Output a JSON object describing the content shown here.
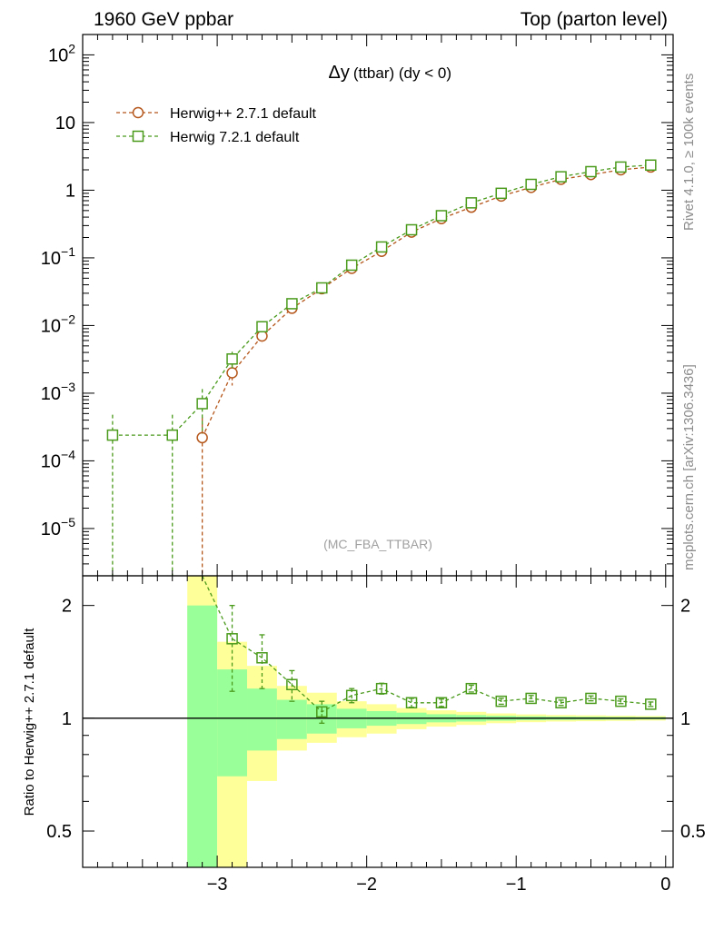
{
  "header": {
    "left": "1960 GeV ppbar",
    "right": "Top (parton level)"
  },
  "side_labels": {
    "rivet": "Rivet 4.1.0, ≥ 100k events",
    "mcplots": "mcplots.cern.ch [arXiv:1306.3436]"
  },
  "plot": {
    "title_main": "Δy",
    "title_sub": "(ttbar) (dy < 0)",
    "analysis_id": "(MC_FBA_TTBAR)"
  },
  "ratio_panel": {
    "ylabel": "Ratio to Herwig++ 2.7.1 default",
    "reference_line": 1
  },
  "colors": {
    "herwigpp": "#b5561b",
    "herwig7": "#4a9a1c",
    "band_inner": "#99ff99",
    "band_outer": "#ffff99"
  },
  "chart_data": [
    {
      "panel": "main",
      "type": "line",
      "yscale": "log",
      "xlim": [
        -3.9,
        0.05
      ],
      "ylim": [
        2e-06,
        200
      ],
      "y_ticks": [
        {
          "value": 1e-05,
          "base": "10",
          "exp": "−5"
        },
        {
          "value": 0.0001,
          "base": "10",
          "exp": "−4"
        },
        {
          "value": 0.001,
          "base": "10",
          "exp": "−3"
        },
        {
          "value": 0.01,
          "base": "10",
          "exp": "−2"
        },
        {
          "value": 0.1,
          "base": "10",
          "exp": "−1"
        },
        {
          "value": 1,
          "base": "1",
          "exp": ""
        },
        {
          "value": 10,
          "base": "10",
          "exp": ""
        },
        {
          "value": 100,
          "base": "10",
          "exp": "2"
        }
      ],
      "series": [
        {
          "name": "Herwig++ 2.7.1 default",
          "marker": "circle",
          "x": [
            -3.1,
            -2.9,
            -2.7,
            -2.5,
            -2.3,
            -2.1,
            -1.9,
            -1.7,
            -1.5,
            -1.3,
            -1.1,
            -0.9,
            -0.7,
            -0.5,
            -0.3,
            -0.1
          ],
          "y": [
            0.00022,
            0.002,
            0.007,
            0.018,
            0.035,
            0.07,
            0.125,
            0.24,
            0.38,
            0.56,
            0.82,
            1.1,
            1.45,
            1.7,
            2.0,
            2.2
          ],
          "yerr_lo": [
            0.00022,
            0.0007,
            0.0015,
            0.002,
            0.002,
            0.003,
            0.004,
            0.005,
            0.006,
            0.008,
            0.01,
            0.012,
            0.014,
            0.015,
            0.016,
            0.017
          ],
          "yerr_hi": [
            0.00022,
            0.0007,
            0.0015,
            0.002,
            0.002,
            0.003,
            0.004,
            0.005,
            0.006,
            0.008,
            0.01,
            0.012,
            0.014,
            0.015,
            0.016,
            0.017
          ]
        },
        {
          "name": "Herwig 7.2.1 default",
          "marker": "square",
          "x": [
            -3.7,
            -3.3,
            -3.1,
            -2.9,
            -2.7,
            -2.5,
            -2.3,
            -2.1,
            -1.9,
            -1.7,
            -1.5,
            -1.3,
            -1.1,
            -0.9,
            -0.7,
            -0.5,
            -0.3,
            -0.1
          ],
          "y": [
            0.00024,
            0.00024,
            0.0007,
            0.0032,
            0.0096,
            0.021,
            0.036,
            0.078,
            0.145,
            0.26,
            0.42,
            0.65,
            0.9,
            1.22,
            1.58,
            1.88,
            2.2,
            2.35
          ],
          "yerr_lo": [
            0.00024,
            0.00024,
            0.00045,
            0.0009,
            0.0018,
            0.0025,
            0.003,
            0.004,
            0.005,
            0.006,
            0.008,
            0.01,
            0.012,
            0.014,
            0.016,
            0.017,
            0.018,
            0.02
          ],
          "yerr_hi": [
            0.00024,
            0.00024,
            0.00045,
            0.0009,
            0.0018,
            0.0025,
            0.003,
            0.004,
            0.005,
            0.006,
            0.008,
            0.01,
            0.012,
            0.014,
            0.016,
            0.017,
            0.018,
            0.02
          ]
        }
      ]
    },
    {
      "panel": "ratio",
      "type": "line",
      "yscale": "log",
      "xlim": [
        -3.9,
        0.05
      ],
      "ylim": [
        0.4,
        2.4
      ],
      "x_ticks": [
        {
          "value": -3,
          "label": "−3"
        },
        {
          "value": -2,
          "label": "−2"
        },
        {
          "value": -1,
          "label": "−1"
        },
        {
          "value": 0,
          "label": "0"
        }
      ],
      "y_ticks": [
        {
          "value": 0.5,
          "label": "0.5"
        },
        {
          "value": 1,
          "label": "1"
        },
        {
          "value": 2,
          "label": "2"
        }
      ],
      "bands": {
        "reference": "Herwig++ 2.7.1 default",
        "bins": [
          {
            "x0": -3.2,
            "x1": -3.0,
            "in_lo": 0.0,
            "in_hi": 2.0,
            "out_lo": 0.0,
            "out_hi": 3.0
          },
          {
            "x0": -3.0,
            "x1": -2.8,
            "in_lo": 0.7,
            "in_hi": 1.35,
            "out_lo": 0.0,
            "out_hi": 1.6
          },
          {
            "x0": -2.8,
            "x1": -2.6,
            "in_lo": 0.82,
            "in_hi": 1.2,
            "out_lo": 0.68,
            "out_hi": 1.38
          },
          {
            "x0": -2.6,
            "x1": -2.4,
            "in_lo": 0.88,
            "in_hi": 1.12,
            "out_lo": 0.82,
            "out_hi": 1.22
          },
          {
            "x0": -2.4,
            "x1": -2.2,
            "in_lo": 0.91,
            "in_hi": 1.09,
            "out_lo": 0.86,
            "out_hi": 1.17
          },
          {
            "x0": -2.2,
            "x1": -2.0,
            "in_lo": 0.94,
            "in_hi": 1.06,
            "out_lo": 0.89,
            "out_hi": 1.11
          },
          {
            "x0": -2.0,
            "x1": -1.8,
            "in_lo": 0.955,
            "in_hi": 1.045,
            "out_lo": 0.91,
            "out_hi": 1.09
          },
          {
            "x0": -1.8,
            "x1": -1.6,
            "in_lo": 0.965,
            "in_hi": 1.035,
            "out_lo": 0.935,
            "out_hi": 1.065
          },
          {
            "x0": -1.6,
            "x1": -1.4,
            "in_lo": 0.975,
            "in_hi": 1.025,
            "out_lo": 0.95,
            "out_hi": 1.05
          },
          {
            "x0": -1.4,
            "x1": -1.2,
            "in_lo": 0.98,
            "in_hi": 1.02,
            "out_lo": 0.96,
            "out_hi": 1.04
          },
          {
            "x0": -1.2,
            "x1": -1.0,
            "in_lo": 0.985,
            "in_hi": 1.015,
            "out_lo": 0.97,
            "out_hi": 1.03
          },
          {
            "x0": -1.0,
            "x1": -0.8,
            "in_lo": 0.988,
            "in_hi": 1.012,
            "out_lo": 0.976,
            "out_hi": 1.024
          },
          {
            "x0": -0.8,
            "x1": -0.6,
            "in_lo": 0.99,
            "in_hi": 1.01,
            "out_lo": 0.98,
            "out_hi": 1.02
          },
          {
            "x0": -0.6,
            "x1": -0.4,
            "in_lo": 0.991,
            "in_hi": 1.009,
            "out_lo": 0.982,
            "out_hi": 1.018
          },
          {
            "x0": -0.4,
            "x1": -0.2,
            "in_lo": 0.992,
            "in_hi": 1.008,
            "out_lo": 0.984,
            "out_hi": 1.016
          },
          {
            "x0": -0.2,
            "x1": 0.0,
            "in_lo": 0.993,
            "in_hi": 1.007,
            "out_lo": 0.986,
            "out_hi": 1.014
          }
        ]
      },
      "series": [
        {
          "name": "Herwig 7.2.1 default / Herwig++ 2.7.1 default",
          "marker": "square",
          "x": [
            -2.9,
            -2.7,
            -2.5,
            -2.3,
            -2.1,
            -1.9,
            -1.7,
            -1.5,
            -1.3,
            -1.1,
            -0.9,
            -0.7,
            -0.5,
            -0.3,
            -0.1
          ],
          "y": [
            1.63,
            1.45,
            1.23,
            1.04,
            1.15,
            1.2,
            1.1,
            1.1,
            1.2,
            1.11,
            1.13,
            1.1,
            1.13,
            1.11,
            1.09
          ],
          "yerr_lo": [
            0.45,
            0.25,
            0.12,
            0.07,
            0.05,
            0.04,
            0.03,
            0.025,
            0.025,
            0.02,
            0.02,
            0.018,
            0.017,
            0.016,
            0.015
          ],
          "yerr_hi": [
            0.37,
            0.22,
            0.11,
            0.07,
            0.05,
            0.04,
            0.03,
            0.025,
            0.025,
            0.02,
            0.02,
            0.018,
            0.017,
            0.016,
            0.015
          ],
          "entry_from_above": {
            "x": -3.1
          }
        }
      ]
    }
  ]
}
